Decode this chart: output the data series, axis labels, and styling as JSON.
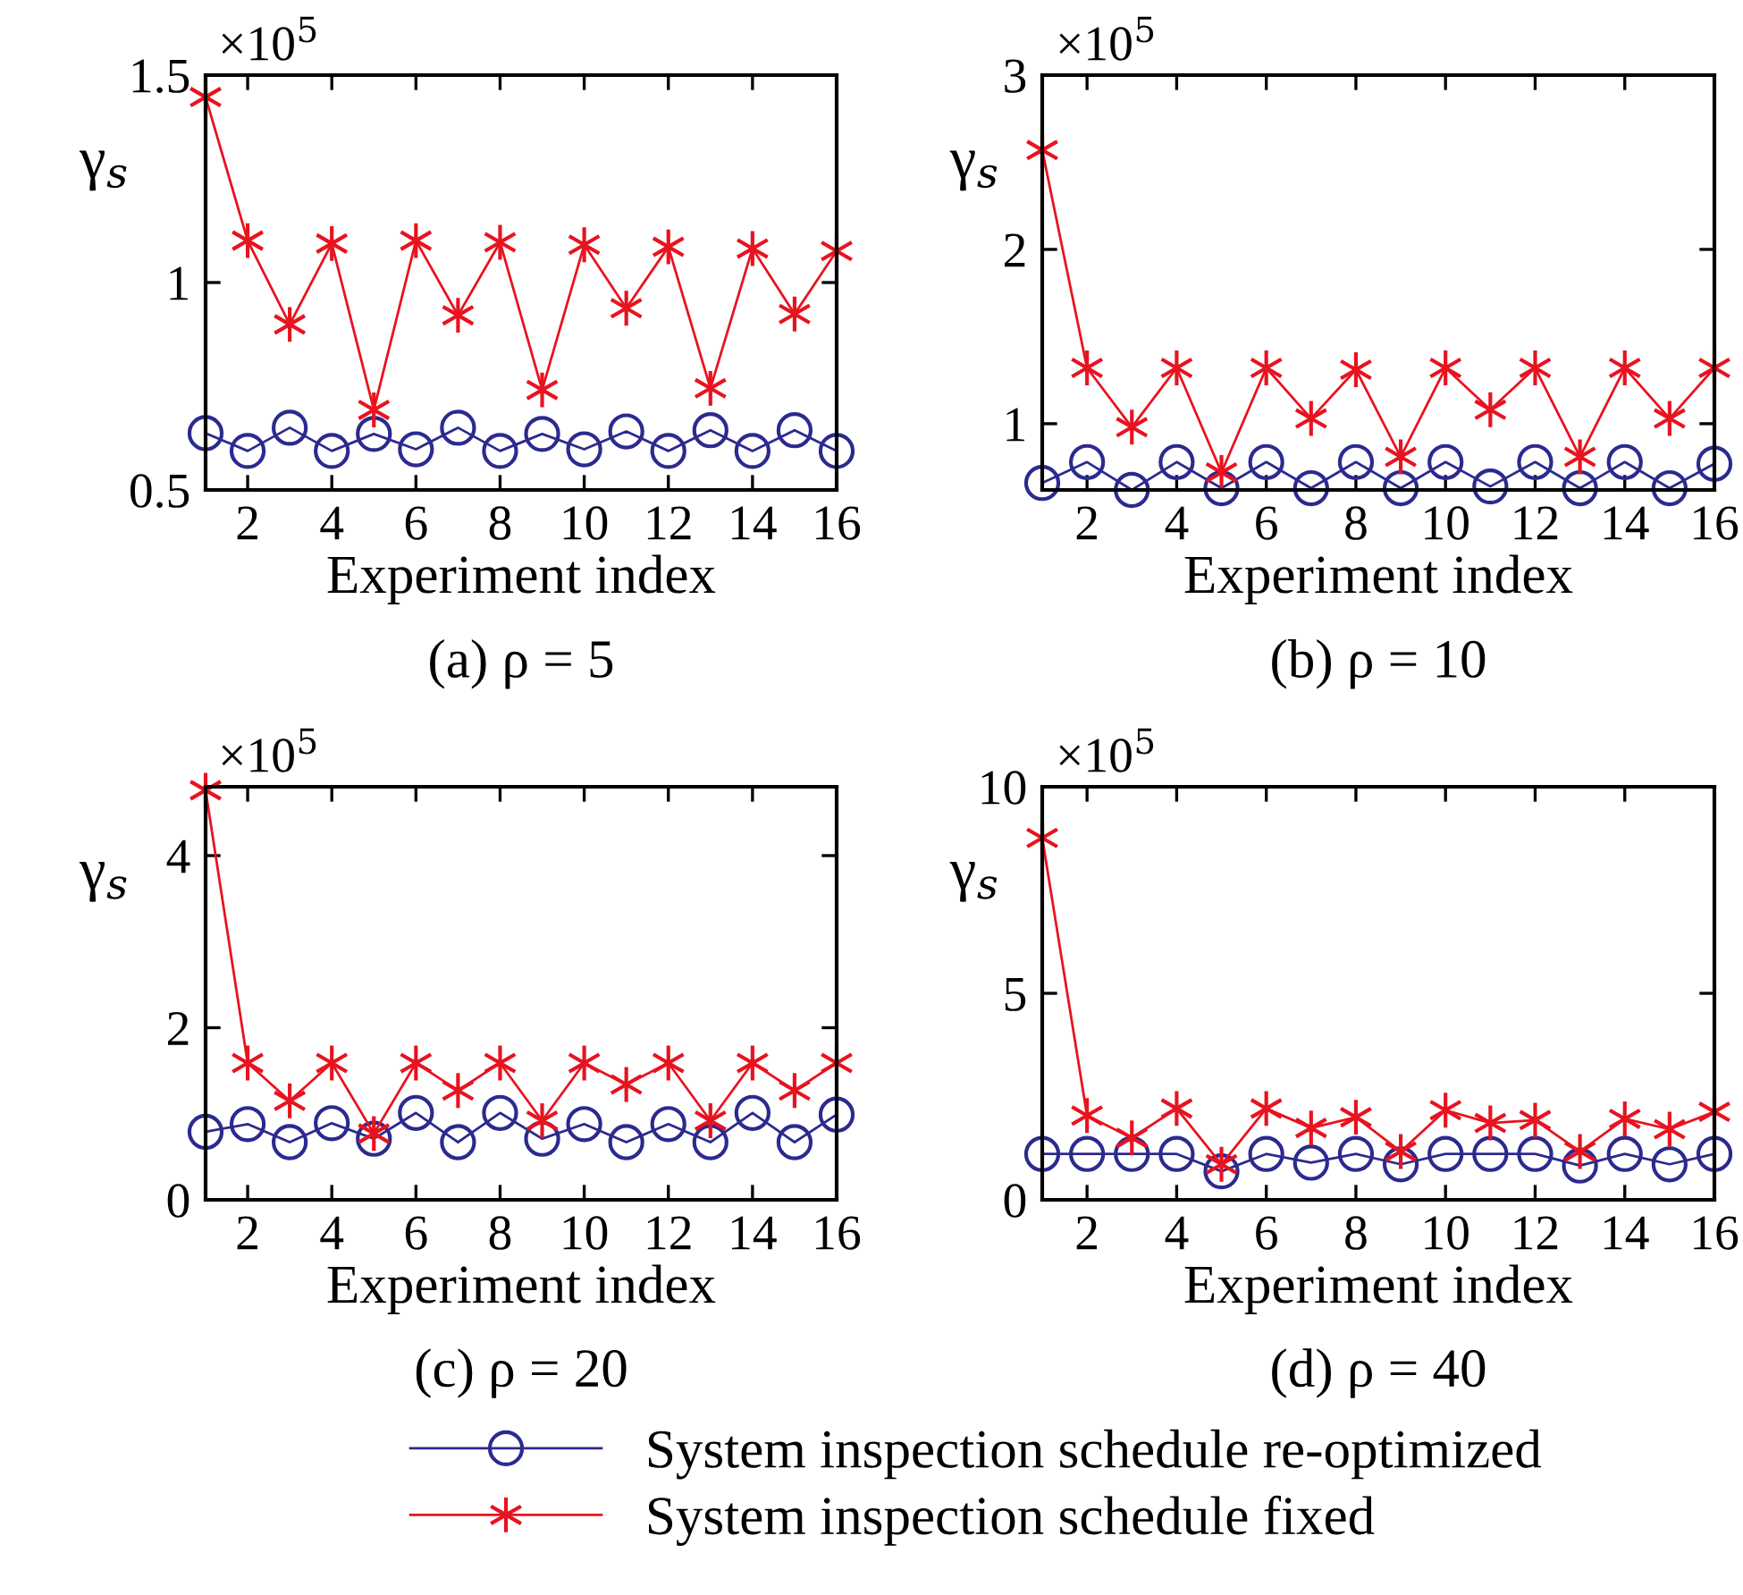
{
  "chart_data": [
    {
      "type": "line",
      "title": "(a) ρ = 5",
      "xlabel": "Experiment index",
      "ylabel": "γ$_{s}$",
      "annotations": [
        "×10$^{5}$"
      ],
      "x": [
        1,
        2,
        3,
        4,
        5,
        6,
        7,
        8,
        9,
        10,
        11,
        12,
        13,
        14,
        15,
        16
      ],
      "xlim": [
        1,
        16
      ],
      "xticks": [
        2,
        4,
        6,
        8,
        10,
        12,
        14,
        16
      ],
      "ylim": [
        0.5,
        1.5
      ],
      "yticks": [
        0.5,
        1,
        1.5
      ],
      "grid": false,
      "line_style": "solid",
      "series": [
        {
          "color": "#2b2a8f",
          "marker": "circle",
          "values": [
            0.637,
            0.594,
            0.65,
            0.594,
            0.635,
            0.598,
            0.65,
            0.594,
            0.635,
            0.598,
            0.641,
            0.594,
            0.644,
            0.594,
            0.644,
            0.594
          ]
        },
        {
          "color": "#e8131f",
          "marker": "cross",
          "values": [
            1.447,
            1.101,
            0.899,
            1.094,
            0.693,
            1.101,
            0.921,
            1.097,
            0.741,
            1.091,
            0.938,
            1.086,
            0.745,
            1.082,
            0.924,
            1.076
          ]
        }
      ]
    },
    {
      "type": "line",
      "title": "(b) ρ = 10",
      "xlabel": "Experiment index",
      "ylabel": "γ$_{s}$",
      "annotations": [
        "×10$^{5}$"
      ],
      "x": [
        1,
        2,
        3,
        4,
        5,
        6,
        7,
        8,
        9,
        10,
        11,
        12,
        13,
        14,
        15,
        16
      ],
      "xlim": [
        1,
        16
      ],
      "xticks": [
        2,
        4,
        6,
        8,
        10,
        12,
        14,
        16
      ],
      "ylim": [
        0.62,
        3
      ],
      "yticks": [
        1,
        2,
        3
      ],
      "grid": false,
      "line_style": "solid",
      "series": [
        {
          "color": "#2b2a8f",
          "marker": "circle",
          "values": [
            0.66,
            0.78,
            0.62,
            0.78,
            0.63,
            0.78,
            0.63,
            0.78,
            0.63,
            0.78,
            0.64,
            0.78,
            0.63,
            0.78,
            0.63,
            0.77
          ]
        },
        {
          "color": "#e8131f",
          "marker": "cross",
          "values": [
            2.57,
            1.32,
            0.98,
            1.32,
            0.72,
            1.32,
            1.03,
            1.31,
            0.81,
            1.32,
            1.08,
            1.32,
            0.81,
            1.32,
            1.03,
            1.32
          ]
        }
      ]
    },
    {
      "type": "line",
      "title": "(c) ρ = 20",
      "xlabel": "Experiment index",
      "ylabel": "γ$_{s}$",
      "annotations": [
        "×10$^{5}$"
      ],
      "x": [
        1,
        2,
        3,
        4,
        5,
        6,
        7,
        8,
        9,
        10,
        11,
        12,
        13,
        14,
        15,
        16
      ],
      "xlim": [
        1,
        16
      ],
      "xticks": [
        2,
        4,
        6,
        8,
        10,
        12,
        14,
        16
      ],
      "ylim": [
        0,
        4.8
      ],
      "yticks": [
        0,
        2,
        4
      ],
      "grid": false,
      "line_style": "solid",
      "series": [
        {
          "color": "#2b2a8f",
          "marker": "circle",
          "values": [
            0.79,
            0.88,
            0.67,
            0.89,
            0.71,
            1.01,
            0.67,
            1.01,
            0.71,
            0.88,
            0.67,
            0.88,
            0.67,
            1.01,
            0.67,
            0.99
          ]
        },
        {
          "color": "#e8131f",
          "marker": "cross",
          "values": [
            4.76,
            1.59,
            1.15,
            1.59,
            0.77,
            1.59,
            1.27,
            1.59,
            0.92,
            1.59,
            1.34,
            1.59,
            0.92,
            1.59,
            1.27,
            1.59
          ]
        }
      ]
    },
    {
      "type": "line",
      "title": "(d) ρ = 40",
      "xlabel": "Experiment index",
      "ylabel": "γ$_{s}$",
      "annotations": [
        "×10$^{5}$"
      ],
      "x": [
        1,
        2,
        3,
        4,
        5,
        6,
        7,
        8,
        9,
        10,
        11,
        12,
        13,
        14,
        15,
        16
      ],
      "xlim": [
        1,
        16
      ],
      "xticks": [
        2,
        4,
        6,
        8,
        10,
        12,
        14,
        16
      ],
      "ylim": [
        0,
        10
      ],
      "yticks": [
        0,
        5,
        10
      ],
      "grid": false,
      "line_style": "solid",
      "legend": "bottom",
      "series": [
        {
          "name": "System inspection schedule re-optimized",
          "color": "#2b2a8f",
          "marker": "circle",
          "values": [
            1.11,
            1.11,
            1.11,
            1.11,
            0.69,
            1.11,
            0.9,
            1.11,
            0.86,
            1.11,
            1.11,
            1.11,
            0.83,
            1.11,
            0.86,
            1.11
          ]
        },
        {
          "name": "System inspection schedule fixed",
          "color": "#e8131f",
          "marker": "cross",
          "values": [
            8.76,
            2.04,
            1.5,
            2.21,
            0.86,
            2.21,
            1.74,
            2.0,
            1.17,
            2.17,
            1.86,
            1.93,
            1.17,
            1.96,
            1.71,
            2.13
          ]
        }
      ]
    }
  ]
}
